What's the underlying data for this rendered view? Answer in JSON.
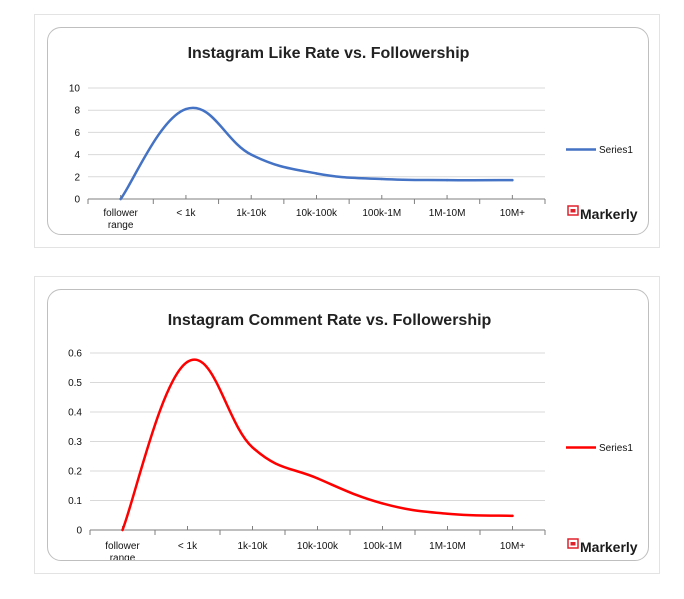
{
  "brand": {
    "name": "Markerly",
    "icon": "markerly-logo-icon",
    "accent": "#e0212b"
  },
  "chart_data": [
    {
      "type": "line",
      "title": "Instagram Like Rate vs. Followership",
      "categories": [
        "follower range",
        "< 1k",
        "1k-10k",
        "10k-100k",
        "100k-1M",
        "1M-10M",
        "10M+"
      ],
      "series": [
        {
          "name": "Series1",
          "color": "#4472c4",
          "values": [
            0,
            8.1,
            4.0,
            2.3,
            1.8,
            1.7,
            1.7
          ]
        }
      ],
      "ylim": [
        0,
        10
      ],
      "yticks": [
        "0",
        "2",
        "4",
        "6",
        "8",
        "10"
      ],
      "ytick_values": [
        0,
        2,
        4,
        6,
        8,
        10
      ],
      "legend": "right",
      "grid": true
    },
    {
      "type": "line",
      "title": "Instagram Comment Rate vs. Followership",
      "categories": [
        "follower range",
        "< 1k",
        "1k-10k",
        "10k-100k",
        "100k-1M",
        "1M-10M",
        "10M+"
      ],
      "series": [
        {
          "name": "Series1",
          "color": "#ff0000",
          "values": [
            0,
            0.57,
            0.28,
            0.175,
            0.09,
            0.055,
            0.048
          ]
        }
      ],
      "ylim": [
        0,
        0.6
      ],
      "yticks": [
        "0",
        "0.1",
        "0.2",
        "0.3",
        "0.4",
        "0.5",
        "0.6"
      ],
      "ytick_values": [
        0,
        0.1,
        0.2,
        0.3,
        0.4,
        0.5,
        0.6
      ],
      "legend": "right",
      "grid": true
    }
  ]
}
